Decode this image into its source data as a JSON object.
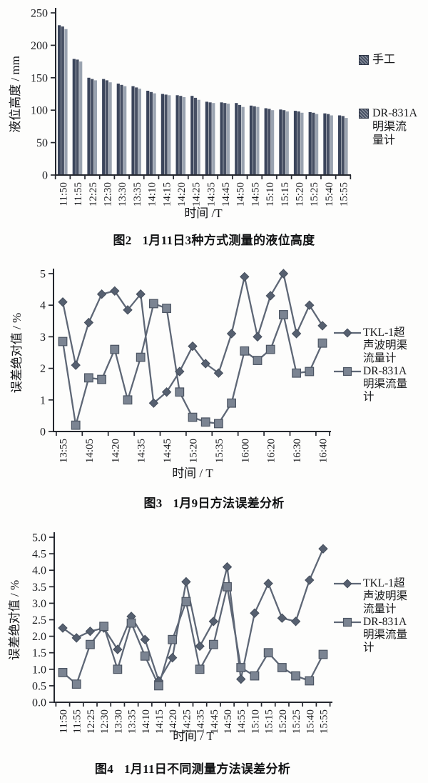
{
  "page": {
    "background": "#fdfdfc",
    "ink": "#24272e",
    "text_color": "#17181a"
  },
  "chart_data": [
    {
      "type": "bar",
      "fig_no": "图2",
      "caption": "1月11日3种方式测量的液位高度",
      "title": "图2 1月11日3种方式测量的液位高度",
      "xlabel": "时间 /T",
      "ylabel": "液位高度 / mm",
      "ylim": [
        0,
        250
      ],
      "ytick_labels": [
        "0",
        "50",
        "100",
        "150",
        "200",
        "250"
      ],
      "grid": false,
      "legend_position": "right",
      "categories": [
        "11:50",
        "11:55",
        "12:25",
        "12:30",
        "13:30",
        "13:35",
        "14:10",
        "14:15",
        "14:20",
        "14:25",
        "14:35",
        "14:45",
        "14:50",
        "14:55",
        "15:10",
        "15:15",
        "15:20",
        "15:25",
        "15:40",
        "15:55"
      ],
      "series": [
        {
          "name": "手工",
          "values": [
            231,
            179,
            150,
            148,
            141,
            137,
            130,
            125,
            123,
            122,
            113,
            112,
            111,
            107,
            103,
            101,
            99,
            97,
            95,
            92
          ]
        },
        {
          "name": "",
          "values": [
            229,
            178,
            148,
            146,
            139,
            135,
            128,
            124,
            122,
            119,
            112,
            111,
            108,
            106,
            102,
            100,
            98,
            96,
            94,
            91
          ]
        },
        {
          "name": "DR-831A明渠流量计",
          "values": [
            225,
            175,
            146,
            143,
            137,
            133,
            126,
            123,
            120,
            116,
            111,
            110,
            105,
            105,
            100,
            98,
            96,
            94,
            92,
            88
          ]
        }
      ],
      "bar_colors": [
        "#3b455b",
        "#475064",
        "#9aa3b0"
      ],
      "legend": [
        {
          "lines": [
            "手工"
          ],
          "marker": "patterned-square"
        },
        {
          "lines": [
            "DR-831A",
            "明渠流",
            "量计"
          ],
          "marker": "patterned-square"
        }
      ]
    },
    {
      "type": "line",
      "fig_no": "图3",
      "caption": "1月9日方法误差分析",
      "title": "图3 1月9日方法误差分析",
      "xlabel": "时间 / T",
      "ylabel": "误差绝对值 / %",
      "ylim": [
        0,
        5
      ],
      "ytick_labels": [
        "0",
        "1",
        "2",
        "3",
        "4",
        "5"
      ],
      "grid": false,
      "legend_position": "right",
      "categories": [
        "13:55",
        "",
        "14:05",
        "",
        "14:20",
        "",
        "14:35",
        "",
        "14:45",
        "",
        "15:20",
        "",
        "15:35",
        "",
        "16:00",
        "",
        "16:20",
        "",
        "16:30",
        "",
        "16:40"
      ],
      "series": [
        {
          "name": "TKL-1超声波明渠流量计",
          "marker": "diamond",
          "values": [
            4.1,
            2.1,
            3.45,
            4.35,
            4.45,
            3.85,
            4.35,
            0.9,
            1.25,
            1.9,
            2.7,
            2.15,
            1.85,
            3.1,
            4.9,
            3.0,
            4.3,
            5.0,
            3.1,
            4.0,
            3.35
          ]
        },
        {
          "name": "DR-831A明渠流量计",
          "marker": "square",
          "values": [
            2.85,
            0.2,
            1.7,
            1.65,
            2.6,
            1.0,
            2.35,
            4.05,
            3.9,
            1.25,
            0.45,
            0.3,
            0.25,
            0.9,
            2.55,
            2.25,
            2.6,
            3.7,
            1.85,
            1.9,
            2.8
          ]
        }
      ],
      "line_color": "#5e6776",
      "marker_colors": {
        "diamond": "#566070",
        "square": "#7b8492"
      },
      "legend": [
        {
          "lines": [
            "TKL-1超",
            "声波明渠",
            "流量计"
          ],
          "marker": "diamond"
        },
        {
          "lines": [
            "DR-831A",
            "明渠流量",
            "计"
          ],
          "marker": "square"
        }
      ]
    },
    {
      "type": "line",
      "fig_no": "图4",
      "caption": "1月11日不同测量方法误差分析",
      "title": "图4 1月11日不同测量方法误差分析",
      "xlabel": "时间 / T",
      "ylabel": "误差绝对值 / %",
      "ylim": [
        0,
        5
      ],
      "ytick_labels": [
        "0.0",
        "0.5",
        "1.0",
        "1.5",
        "2.0",
        "2.5",
        "3.0",
        "3.5",
        "4.0",
        "4.5",
        "5.0"
      ],
      "grid": false,
      "legend_position": "right",
      "categories": [
        "11:50",
        "11:55",
        "12:25",
        "12:30",
        "13:30",
        "13:35",
        "14:10",
        "14:15",
        "14:20",
        "14:25",
        "14:35",
        "14:45",
        "14:50",
        "14:55",
        "15:10",
        "15:15",
        "15:20",
        "15:25",
        "15:40",
        "15:55"
      ],
      "series": [
        {
          "name": "TKL-1超声波明渠流量计",
          "marker": "diamond",
          "values": [
            2.25,
            1.95,
            2.15,
            2.25,
            1.6,
            2.6,
            1.9,
            0.65,
            1.35,
            3.65,
            1.7,
            2.45,
            4.1,
            0.7,
            2.7,
            3.6,
            2.55,
            2.45,
            3.7,
            4.65
          ]
        },
        {
          "name": "DR-831A明渠流量计",
          "marker": "square",
          "values": [
            0.9,
            0.55,
            1.75,
            2.3,
            1.0,
            2.4,
            1.4,
            0.5,
            1.9,
            3.05,
            1.0,
            1.75,
            3.5,
            1.05,
            0.8,
            1.5,
            1.05,
            0.8,
            0.65,
            1.45
          ]
        }
      ],
      "line_color": "#5e6776",
      "marker_colors": {
        "diamond": "#566070",
        "square": "#7b8492"
      },
      "legend": [
        {
          "lines": [
            "TKL-1超",
            "声波明渠",
            "流量计"
          ],
          "marker": "diamond"
        },
        {
          "lines": [
            "DR-831A",
            "明渠流量",
            "计"
          ],
          "marker": "square"
        }
      ]
    }
  ]
}
